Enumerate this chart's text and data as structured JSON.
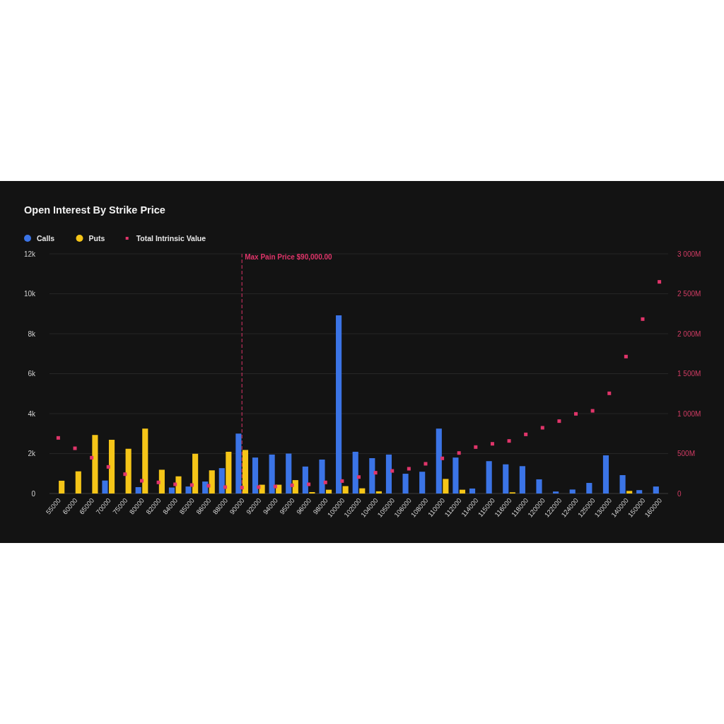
{
  "chart_data": {
    "type": "bar",
    "title": "Open Interest By Strike Price",
    "categories": [
      "55000",
      "60000",
      "65000",
      "70000",
      "75000",
      "80000",
      "82000",
      "84000",
      "85000",
      "86000",
      "88000",
      "90000",
      "92000",
      "94000",
      "95000",
      "96000",
      "98000",
      "100000",
      "102000",
      "104000",
      "105000",
      "106000",
      "108000",
      "110000",
      "112000",
      "114000",
      "115000",
      "116000",
      "118000",
      "120000",
      "122000",
      "124000",
      "125000",
      "130000",
      "140000",
      "150000",
      "160000"
    ],
    "series": [
      {
        "name": "Calls",
        "color": "#3b74e6",
        "values": [
          0,
          0,
          0,
          650,
          0,
          320,
          0,
          300,
          350,
          600,
          1270,
          3000,
          1800,
          1950,
          2000,
          1350,
          1700,
          8920,
          2090,
          1770,
          1950,
          990,
          1090,
          3250,
          1800,
          250,
          1620,
          1460,
          1370,
          710,
          100,
          200,
          530,
          1910,
          920,
          170,
          350
        ]
      },
      {
        "name": "Puts",
        "color": "#f5c518",
        "values": [
          640,
          1110,
          2930,
          2690,
          2240,
          3250,
          1190,
          860,
          1990,
          1160,
          2090,
          2180,
          440,
          440,
          670,
          70,
          190,
          370,
          260,
          110,
          0,
          0,
          0,
          730,
          190,
          0,
          0,
          60,
          0,
          0,
          0,
          0,
          0,
          0,
          130,
          0,
          0
        ]
      },
      {
        "name": "Total Intrinsic Value",
        "type": "scatter",
        "axis": "y2",
        "marker": "square",
        "color": "#e0356a",
        "values": [
          696,
          566,
          448,
          333,
          242,
          159,
          139,
          115,
          106,
          97,
          80,
          74,
          80,
          88,
          103,
          115,
          139,
          156,
          206,
          260,
          283,
          310,
          372,
          440,
          507,
          581,
          622,
          658,
          740,
          823,
          906,
          997,
          1035,
          1254,
          1714,
          2183,
          2649
        ]
      }
    ],
    "ylim": [
      0,
      12000
    ],
    "yticks": [
      0,
      {
        "value": 2000,
        "label": "2k"
      },
      {
        "value": 4000,
        "label": "4k"
      },
      {
        "value": 6000,
        "label": "6k"
      },
      {
        "value": 8000,
        "label": "8k"
      },
      {
        "value": 10000,
        "label": "10k"
      },
      {
        "value": 12000,
        "label": "12k"
      }
    ],
    "y2lim": [
      0,
      3000
    ],
    "y2ticks": [
      0,
      {
        "value": 500,
        "label": "500M"
      },
      {
        "value": 1000,
        "label": "1 000M"
      },
      {
        "value": 1500,
        "label": "1 500M"
      },
      {
        "value": 2000,
        "label": "2 000M"
      },
      {
        "value": 2500,
        "label": "2 500M"
      },
      {
        "value": 3000,
        "label": "3 000M"
      }
    ],
    "ref_lines": [
      {
        "axis": "x",
        "value": "90000",
        "label": "Max Pain Price $90,000.00",
        "color": "#e0356a",
        "line_style": "dashed"
      }
    ],
    "grid": "y",
    "legend": "top left"
  }
}
